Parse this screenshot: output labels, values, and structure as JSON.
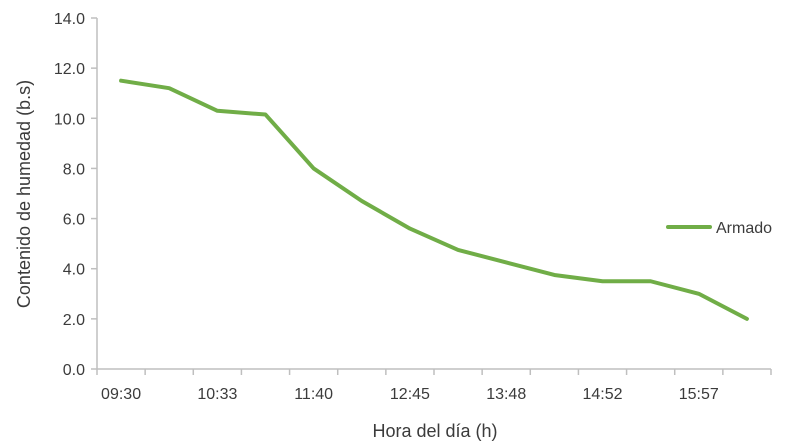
{
  "chart_data": {
    "type": "line",
    "xlabel": "Hora del día (h)",
    "ylabel": "Contenido de humedad (b.s)",
    "ylim": [
      0,
      14
    ],
    "yticks": [
      "0.0",
      "2.0",
      "4.0",
      "6.0",
      "8.0",
      "10.0",
      "12.0",
      "14.0"
    ],
    "x": [
      "09:30",
      "10:00",
      "10:33",
      "11:07",
      "11:40",
      "12:12",
      "12:45",
      "13:16",
      "13:48",
      "14:20",
      "14:52",
      "15:25",
      "15:57",
      "16:29"
    ],
    "xtick_labels": [
      "09:30",
      "10:33",
      "11:40",
      "12:45",
      "13:48",
      "14:52",
      "15:57"
    ],
    "legend_position": "right",
    "series": [
      {
        "name": "Armado",
        "color": "#70ad47",
        "values": [
          11.5,
          11.2,
          10.3,
          10.15,
          8.0,
          6.7,
          5.6,
          4.75,
          4.25,
          3.75,
          3.5,
          3.5,
          3.0,
          2.0
        ]
      }
    ]
  }
}
